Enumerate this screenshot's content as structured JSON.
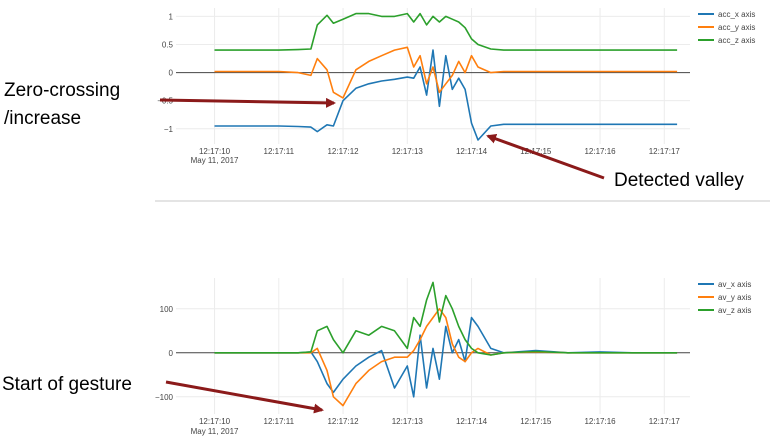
{
  "chart_data": [
    {
      "type": "line",
      "x": [
        "12:17:10.0",
        "12:17:10.5",
        "12:17:11.0",
        "12:17:11.3",
        "12:17:11.5",
        "12:17:11.6",
        "12:17:11.75",
        "12:17:11.85",
        "12:17:12.0",
        "12:17:12.2",
        "12:17:12.4",
        "12:17:12.6",
        "12:17:12.8",
        "12:17:13.0",
        "12:17:13.1",
        "12:17:13.2",
        "12:17:13.3",
        "12:17:13.4",
        "12:17:13.5",
        "12:17:13.6",
        "12:17:13.7",
        "12:17:13.8",
        "12:17:13.9",
        "12:17:14.0",
        "12:17:14.1",
        "12:17:14.3",
        "12:17:14.5",
        "12:17:15.0",
        "12:17:15.5",
        "12:17:16.0",
        "12:17:16.5",
        "12:17:17.0",
        "12:17:17.2"
      ],
      "x_ticks": [
        "12:17:10",
        "12:17:11",
        "12:17:12",
        "12:17:13",
        "12:17:14",
        "12:17:15",
        "12:17:16",
        "12:17:17"
      ],
      "x_date_label": "May 11, 2017",
      "y_ticks": [
        "1",
        "0.5",
        "0",
        "−0.5",
        "−1"
      ],
      "ylim": [
        -1.2,
        1.15
      ],
      "series": [
        {
          "name": "acc_x axis",
          "color": "#1f77b4",
          "values": [
            -0.95,
            -0.95,
            -0.95,
            -0.96,
            -0.97,
            -1.05,
            -0.93,
            -0.95,
            -0.5,
            -0.28,
            -0.2,
            -0.15,
            -0.12,
            -0.08,
            -0.1,
            0.1,
            -0.4,
            0.4,
            -0.6,
            0.3,
            -0.3,
            -0.1,
            -0.3,
            -0.9,
            -1.2,
            -0.95,
            -0.92,
            -0.92,
            -0.92,
            -0.92,
            -0.92,
            -0.92,
            -0.92
          ]
        },
        {
          "name": "acc_y axis",
          "color": "#ff7f0e",
          "values": [
            0.02,
            0.02,
            0.02,
            0.0,
            -0.05,
            0.25,
            0.05,
            -0.35,
            -0.45,
            0.05,
            0.2,
            0.3,
            0.4,
            0.45,
            0.1,
            0.3,
            -0.2,
            0.1,
            -0.35,
            -0.2,
            -0.05,
            0.2,
            0.0,
            0.3,
            0.1,
            0.0,
            0.02,
            0.02,
            0.02,
            0.02,
            0.02,
            0.02,
            0.02
          ]
        },
        {
          "name": "acc_z axis",
          "color": "#2ca02c",
          "values": [
            0.4,
            0.4,
            0.4,
            0.41,
            0.42,
            0.85,
            1.02,
            0.88,
            0.95,
            1.05,
            1.05,
            1.0,
            1.0,
            1.05,
            0.9,
            1.05,
            0.85,
            1.0,
            0.9,
            1.0,
            0.95,
            0.9,
            0.8,
            0.6,
            0.5,
            0.42,
            0.4,
            0.4,
            0.4,
            0.4,
            0.4,
            0.4,
            0.4
          ]
        }
      ]
    },
    {
      "type": "line",
      "x": [
        "12:17:10.0",
        "12:17:10.5",
        "12:17:11.0",
        "12:17:11.3",
        "12:17:11.5",
        "12:17:11.6",
        "12:17:11.75",
        "12:17:11.85",
        "12:17:12.0",
        "12:17:12.2",
        "12:17:12.4",
        "12:17:12.6",
        "12:17:12.8",
        "12:17:13.0",
        "12:17:13.1",
        "12:17:13.2",
        "12:17:13.3",
        "12:17:13.4",
        "12:17:13.5",
        "12:17:13.6",
        "12:17:13.7",
        "12:17:13.8",
        "12:17:13.9",
        "12:17:14.0",
        "12:17:14.1",
        "12:17:14.3",
        "12:17:14.5",
        "12:17:15.0",
        "12:17:15.5",
        "12:17:16.0",
        "12:17:16.5",
        "12:17:17.0",
        "12:17:17.2"
      ],
      "x_ticks": [
        "12:17:10",
        "12:17:11",
        "12:17:12",
        "12:17:13",
        "12:17:14",
        "12:17:15",
        "12:17:16",
        "12:17:17"
      ],
      "x_date_label": "May 11, 2017",
      "y_ticks": [
        "100",
        "0",
        "−100"
      ],
      "ylim": [
        -130,
        170
      ],
      "series": [
        {
          "name": "av_x axis",
          "color": "#1f77b4",
          "values": [
            0,
            0,
            0,
            0,
            2,
            -20,
            -70,
            -90,
            -60,
            -30,
            -10,
            5,
            -80,
            -30,
            -100,
            40,
            -80,
            10,
            -60,
            60,
            0,
            30,
            -20,
            80,
            60,
            10,
            0,
            5,
            0,
            2,
            0,
            0,
            0
          ]
        },
        {
          "name": "av_y axis",
          "color": "#ff7f0e",
          "values": [
            0,
            0,
            0,
            0,
            0,
            10,
            -40,
            -100,
            -120,
            -70,
            -40,
            -20,
            -10,
            -10,
            5,
            30,
            60,
            80,
            100,
            80,
            20,
            -10,
            -20,
            0,
            10,
            -5,
            0,
            2,
            0,
            0,
            0,
            0,
            0
          ]
        },
        {
          "name": "av_z axis",
          "color": "#2ca02c",
          "values": [
            0,
            0,
            0,
            0,
            2,
            50,
            60,
            30,
            0,
            50,
            40,
            60,
            50,
            10,
            80,
            60,
            120,
            160,
            70,
            130,
            100,
            60,
            30,
            10,
            0,
            -5,
            0,
            3,
            0,
            0,
            0,
            0,
            0
          ]
        }
      ]
    }
  ],
  "annotations": {
    "zero_crossing": "Zero-crossing",
    "increase": "/increase",
    "detected_valley": "Detected valley",
    "start_of_gesture": "Start of gesture",
    "arrow_color": "#8b1a1a"
  }
}
